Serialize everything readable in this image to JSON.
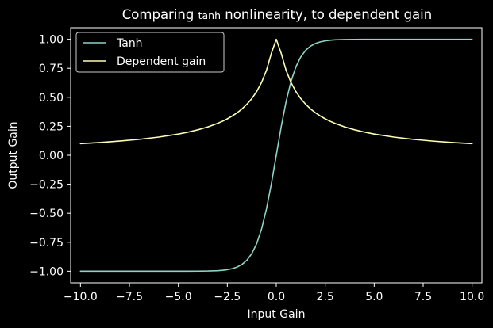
{
  "chart_data": {
    "type": "line",
    "title": {
      "prefix": "Comparing ",
      "small_word": "tanh",
      "suffix": " nonlinearity, to dependent gain"
    },
    "xlabel": "Input Gain",
    "ylabel": "Output Gain",
    "xlim": [
      -10.5,
      10.5
    ],
    "ylim": [
      -1.1,
      1.1
    ],
    "xticks": [
      -10.0,
      -7.5,
      -5.0,
      -2.5,
      0.0,
      2.5,
      5.0,
      7.5,
      10.0
    ],
    "xtick_labels": [
      "−10.0",
      "−7.5",
      "−5.0",
      "−2.5",
      "0.0",
      "2.5",
      "5.0",
      "7.5",
      "10.0"
    ],
    "yticks": [
      1.0,
      0.75,
      0.5,
      0.25,
      0.0,
      -0.25,
      -0.5,
      -0.75,
      -1.0
    ],
    "ytick_labels": [
      "1.00",
      "0.75",
      "0.50",
      "0.25",
      "0.00",
      "−0.25",
      "−0.50",
      "−0.75",
      "−1.00"
    ],
    "legend_position": "upper left",
    "grid": false,
    "series": [
      {
        "name": "Tanh",
        "color": "#8dd3c7",
        "x": [
          -10.0,
          -9.0,
          -8.0,
          -7.0,
          -6.0,
          -5.0,
          -4.5,
          -4.0,
          -3.5,
          -3.0,
          -2.75,
          -2.5,
          -2.25,
          -2.0,
          -1.75,
          -1.5,
          -1.25,
          -1.0,
          -0.75,
          -0.5,
          -0.25,
          0.0,
          0.25,
          0.5,
          0.75,
          1.0,
          1.25,
          1.5,
          1.75,
          2.0,
          2.25,
          2.5,
          2.75,
          3.0,
          3.5,
          4.0,
          4.5,
          5.0,
          6.0,
          7.0,
          8.0,
          9.0,
          10.0
        ],
        "y": [
          -1.0,
          -1.0,
          -1.0,
          -1.0,
          -1.0,
          -0.9999,
          -0.9998,
          -0.9993,
          -0.9982,
          -0.9951,
          -0.9918,
          -0.9866,
          -0.978,
          -0.964,
          -0.9414,
          -0.9051,
          -0.8483,
          -0.7616,
          -0.6351,
          -0.4621,
          -0.2449,
          0.0,
          0.2449,
          0.4621,
          0.6351,
          0.7616,
          0.8483,
          0.9051,
          0.9414,
          0.964,
          0.978,
          0.9866,
          0.9918,
          0.9951,
          0.9982,
          0.9993,
          0.9998,
          0.9999,
          1.0,
          1.0,
          1.0,
          1.0,
          1.0
        ]
      },
      {
        "name": "Dependent gain",
        "color": "#ffffb3",
        "x": [
          -10.0,
          -9.0,
          -8.0,
          -7.0,
          -6.0,
          -5.0,
          -4.5,
          -4.0,
          -3.5,
          -3.0,
          -2.75,
          -2.5,
          -2.25,
          -2.0,
          -1.75,
          -1.5,
          -1.25,
          -1.0,
          -0.75,
          -0.5,
          -0.25,
          0.0,
          0.25,
          0.5,
          0.75,
          1.0,
          1.25,
          1.5,
          1.75,
          2.0,
          2.25,
          2.5,
          2.75,
          3.0,
          3.5,
          4.0,
          4.5,
          5.0,
          6.0,
          7.0,
          8.0,
          9.0,
          10.0
        ],
        "y": [
          0.1,
          0.11,
          0.1222,
          0.1375,
          0.1571,
          0.1833,
          0.2,
          0.22,
          0.2444,
          0.275,
          0.2933,
          0.3143,
          0.3385,
          0.3667,
          0.4,
          0.44,
          0.4889,
          0.55,
          0.6286,
          0.7333,
          0.88,
          1.0,
          0.88,
          0.7333,
          0.6286,
          0.55,
          0.4889,
          0.44,
          0.4,
          0.3667,
          0.3385,
          0.3143,
          0.2933,
          0.275,
          0.2444,
          0.22,
          0.2,
          0.1833,
          0.1571,
          0.1375,
          0.1222,
          0.11,
          0.1
        ]
      }
    ]
  },
  "colors": {
    "background": "#000000",
    "foreground": "#ffffff"
  }
}
